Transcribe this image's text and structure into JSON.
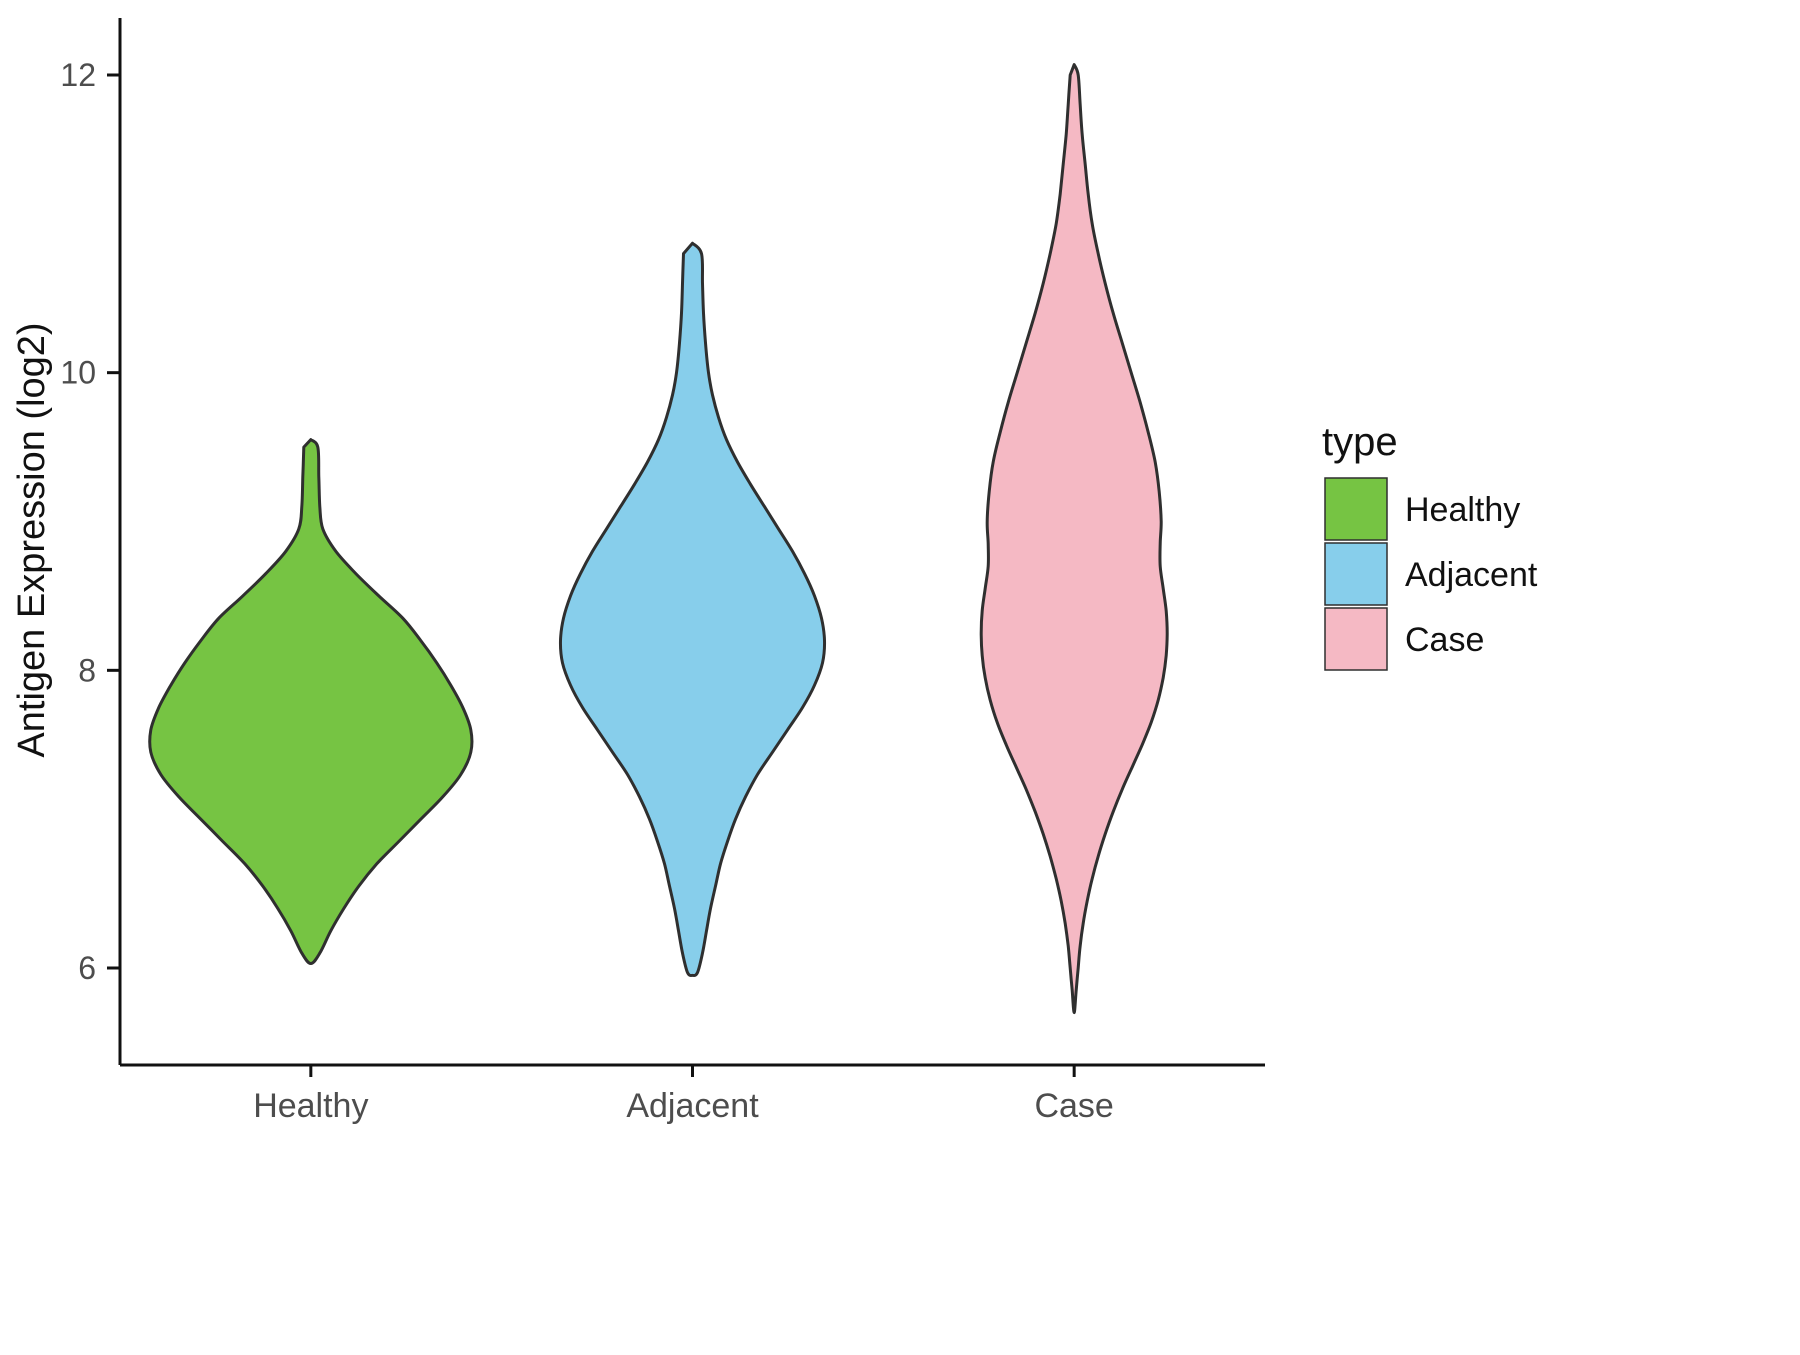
{
  "chart_data": {
    "type": "violin",
    "title": "",
    "xlabel": "",
    "ylabel": "Antigen Expression (log2)",
    "ylim": [
      5.3,
      12.4
    ],
    "yticks": [
      6,
      8,
      10,
      12
    ],
    "categories": [
      "Healthy",
      "Adjacent",
      "Case"
    ],
    "grid": false,
    "legend_position": "right",
    "legend": {
      "title": "type",
      "entries": [
        {
          "label": "Healthy",
          "color": "#76C443"
        },
        {
          "label": "Adjacent",
          "color": "#87CEEB"
        },
        {
          "label": "Case",
          "color": "#F5B9C4"
        }
      ]
    },
    "series": [
      {
        "name": "Healthy",
        "fill": "#76C443",
        "min_value": 6.03,
        "max_value": 9.55,
        "profile": [
          [
            9.55,
            0
          ],
          [
            9.5,
            7
          ],
          [
            9.3,
            8
          ],
          [
            9.1,
            9
          ],
          [
            8.95,
            12
          ],
          [
            8.8,
            25
          ],
          [
            8.65,
            45
          ],
          [
            8.5,
            68
          ],
          [
            8.35,
            92
          ],
          [
            8.2,
            110
          ],
          [
            8.05,
            126
          ],
          [
            7.9,
            140
          ],
          [
            7.75,
            152
          ],
          [
            7.6,
            160
          ],
          [
            7.45,
            160
          ],
          [
            7.3,
            150
          ],
          [
            7.15,
            132
          ],
          [
            7.0,
            110
          ],
          [
            6.85,
            88
          ],
          [
            6.7,
            66
          ],
          [
            6.55,
            48
          ],
          [
            6.4,
            33
          ],
          [
            6.25,
            20
          ],
          [
            6.1,
            9
          ],
          [
            6.03,
            0
          ]
        ]
      },
      {
        "name": "Adjacent",
        "fill": "#87CEEB",
        "min_value": 5.95,
        "max_value": 10.87,
        "profile": [
          [
            10.87,
            0
          ],
          [
            10.8,
            9
          ],
          [
            10.6,
            10
          ],
          [
            10.4,
            11
          ],
          [
            10.2,
            13
          ],
          [
            10.0,
            16
          ],
          [
            9.85,
            20
          ],
          [
            9.7,
            26
          ],
          [
            9.55,
            34
          ],
          [
            9.4,
            45
          ],
          [
            9.25,
            58
          ],
          [
            9.1,
            72
          ],
          [
            8.95,
            86
          ],
          [
            8.8,
            100
          ],
          [
            8.65,
            112
          ],
          [
            8.5,
            122
          ],
          [
            8.35,
            129
          ],
          [
            8.2,
            132
          ],
          [
            8.05,
            130
          ],
          [
            7.9,
            122
          ],
          [
            7.75,
            110
          ],
          [
            7.6,
            95
          ],
          [
            7.45,
            80
          ],
          [
            7.3,
            65
          ],
          [
            7.15,
            53
          ],
          [
            7.0,
            43
          ],
          [
            6.85,
            35
          ],
          [
            6.7,
            28
          ],
          [
            6.55,
            23
          ],
          [
            6.4,
            18
          ],
          [
            6.25,
            14
          ],
          [
            6.1,
            10
          ],
          [
            5.97,
            5
          ],
          [
            5.95,
            0
          ]
        ]
      },
      {
        "name": "Case",
        "fill": "#F5B9C4",
        "min_value": 5.7,
        "max_value": 12.07,
        "profile": [
          [
            12.07,
            0
          ],
          [
            12.0,
            4
          ],
          [
            11.8,
            6
          ],
          [
            11.6,
            8
          ],
          [
            11.4,
            11
          ],
          [
            11.2,
            14
          ],
          [
            11.0,
            18
          ],
          [
            10.8,
            24
          ],
          [
            10.6,
            31
          ],
          [
            10.4,
            39
          ],
          [
            10.2,
            48
          ],
          [
            10.0,
            57
          ],
          [
            9.8,
            66
          ],
          [
            9.6,
            74
          ],
          [
            9.4,
            81
          ],
          [
            9.2,
            85
          ],
          [
            9.0,
            87
          ],
          [
            8.85,
            86
          ],
          [
            8.7,
            86
          ],
          [
            8.55,
            89
          ],
          [
            8.4,
            92
          ],
          [
            8.25,
            93
          ],
          [
            8.1,
            92
          ],
          [
            7.95,
            89
          ],
          [
            7.8,
            84
          ],
          [
            7.65,
            77
          ],
          [
            7.5,
            68
          ],
          [
            7.35,
            58
          ],
          [
            7.2,
            48
          ],
          [
            7.05,
            39
          ],
          [
            6.9,
            31
          ],
          [
            6.75,
            24
          ],
          [
            6.6,
            18
          ],
          [
            6.45,
            13
          ],
          [
            6.3,
            9
          ],
          [
            6.15,
            6
          ],
          [
            6.0,
            4
          ],
          [
            5.85,
            2
          ],
          [
            5.7,
            0
          ]
        ]
      }
    ]
  },
  "style": {
    "background": "#FFFFFF",
    "violin_stroke": "#2F2F2F",
    "axis_color": "#111111",
    "tick_label_color": "#4d4d4d"
  }
}
